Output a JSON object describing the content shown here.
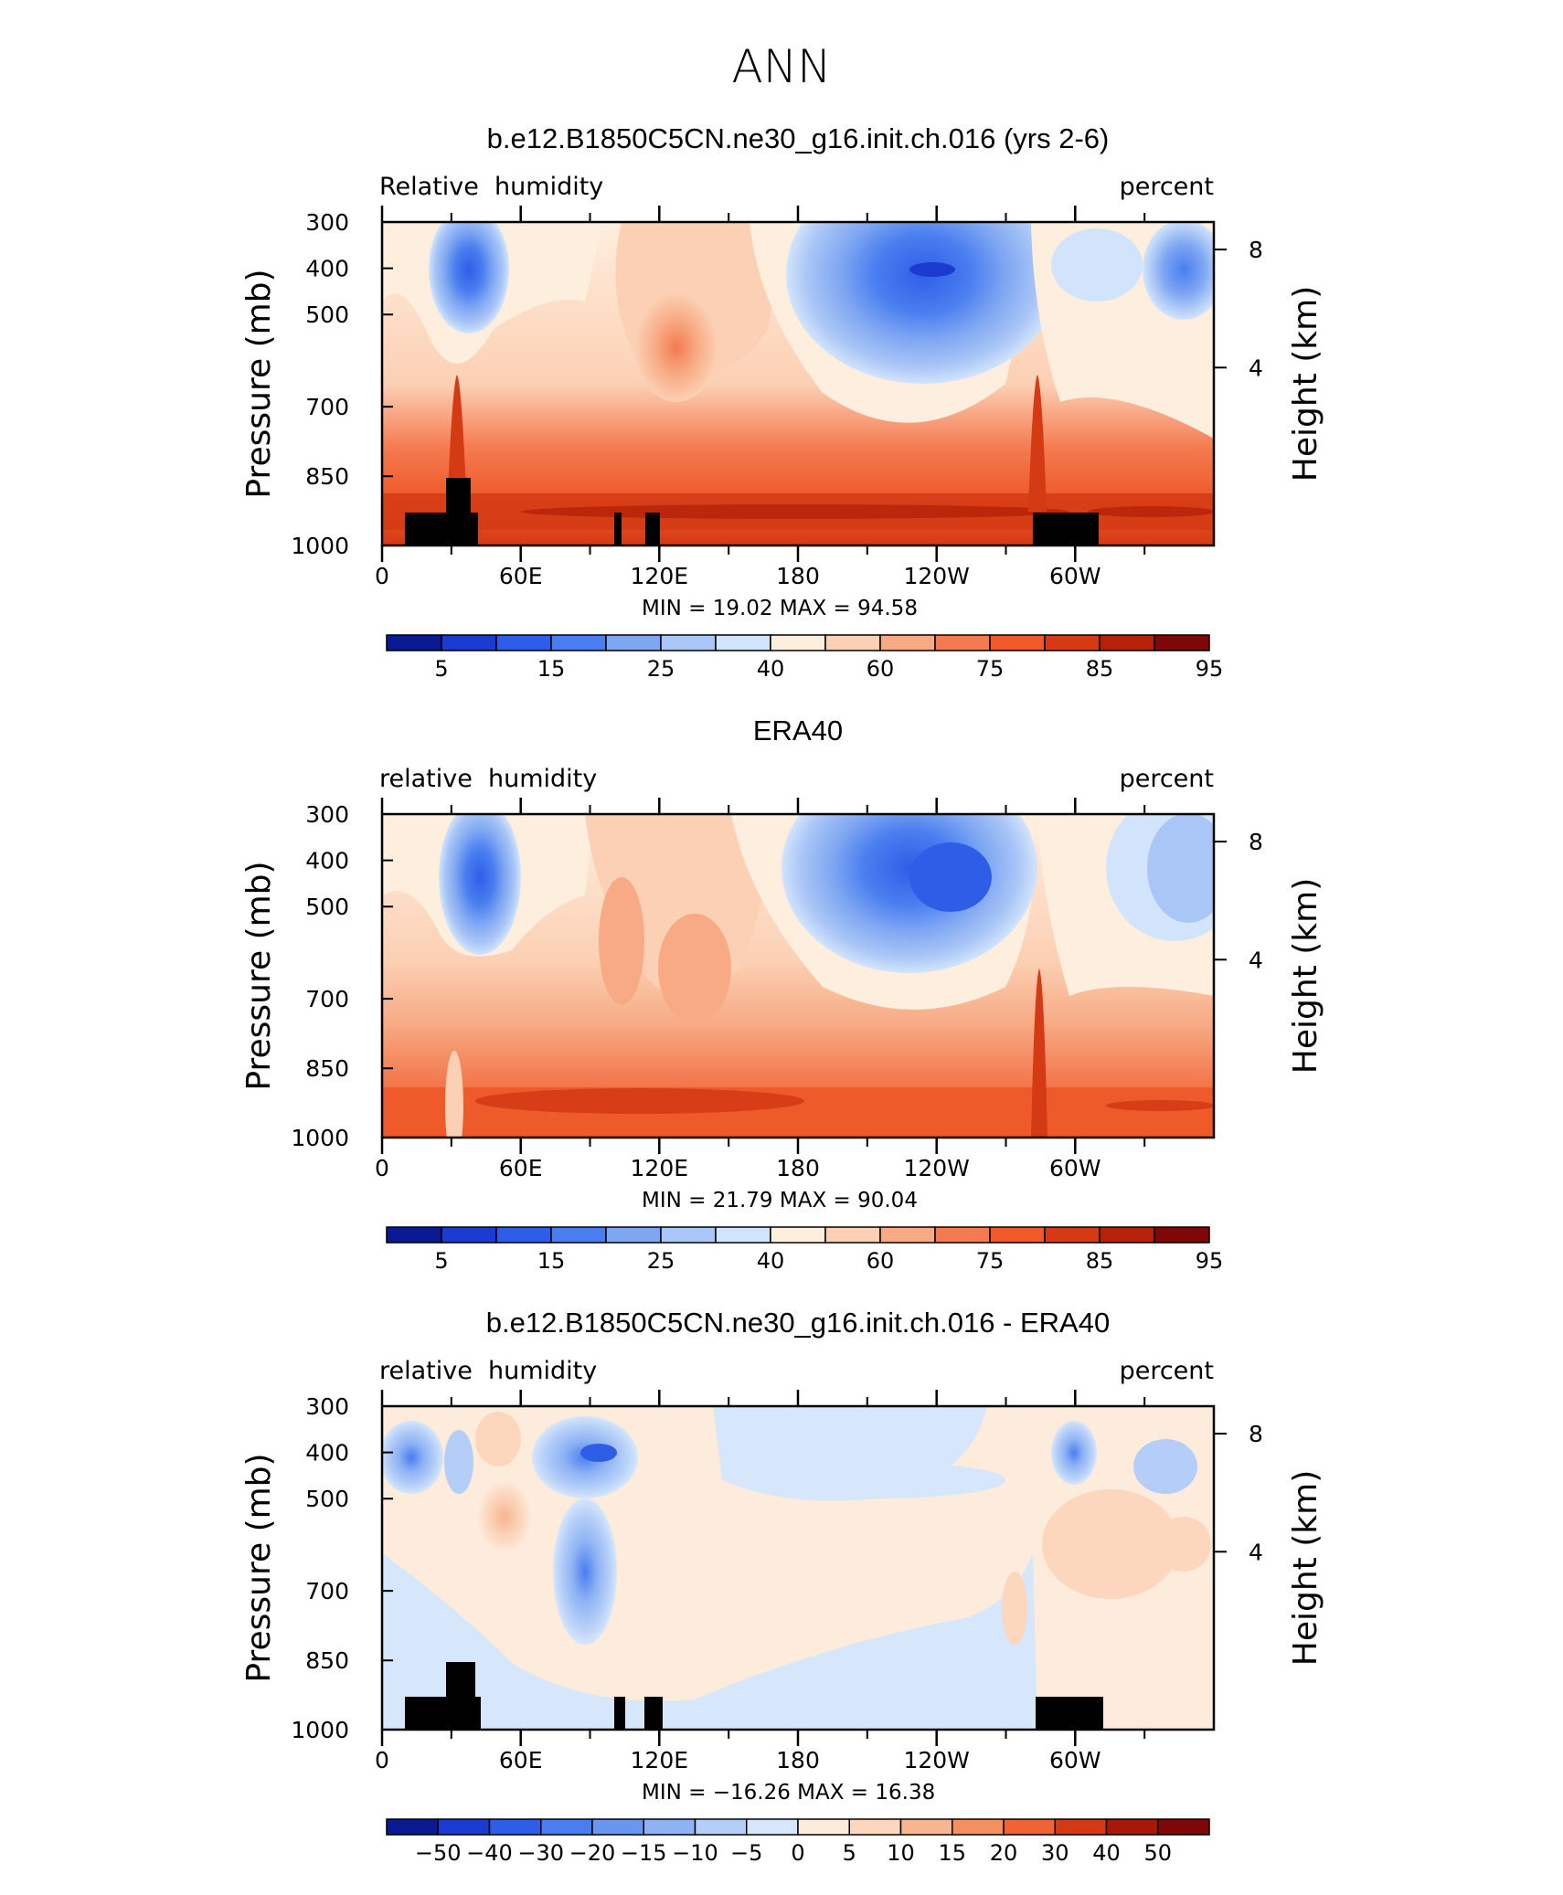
{
  "figure": {
    "title": "ANN"
  },
  "chart_data": [
    {
      "type": "heatmap",
      "title": "b.e12.B1850C5CN.ne30_g16.init.ch.016 (yrs 2-6)",
      "left_label": "Relative  humidity",
      "right_label": "percent",
      "ylabel": "Pressure  (mb)",
      "ylabel_right": "Height  (km)",
      "yticks": [
        "300",
        "400",
        "500",
        "700",
        "850",
        "1000"
      ],
      "yticks_right": [
        "8",
        "4"
      ],
      "xticks": [
        "0",
        "60E",
        "120E",
        "180",
        "120W",
        "60W"
      ],
      "stats": {
        "min_label": "MIN =",
        "min": "19.02",
        "max_label": "MAX =",
        "max": "94.58"
      },
      "colorbar_labels": [
        "5",
        "15",
        "25",
        "40",
        "60",
        "75",
        "85",
        "95"
      ],
      "colorbar_colors": [
        "#0a1a90",
        "#1a3ad0",
        "#2e5ee8",
        "#4a7ef0",
        "#7ea6f2",
        "#aac6f6",
        "#d2e4fb",
        "#feeede",
        "#fcd0b4",
        "#f7aa84",
        "#f47a50",
        "#ee5a2a",
        "#d43a14",
        "#b42208",
        "#7e0808"
      ],
      "topography": true
    },
    {
      "type": "heatmap",
      "title": "ERA40",
      "left_label": "relative  humidity",
      "right_label": "percent",
      "ylabel": "Pressure  (mb)",
      "ylabel_right": "Height  (km)",
      "yticks": [
        "300",
        "400",
        "500",
        "700",
        "850",
        "1000"
      ],
      "yticks_right": [
        "8",
        "4"
      ],
      "xticks": [
        "0",
        "60E",
        "120E",
        "180",
        "120W",
        "60W"
      ],
      "stats": {
        "min_label": "MIN =",
        "min": "21.79",
        "max_label": "MAX =",
        "max": "90.04"
      },
      "colorbar_labels": [
        "5",
        "15",
        "25",
        "40",
        "60",
        "75",
        "85",
        "95"
      ],
      "colorbar_colors": [
        "#0a1a90",
        "#1a3ad0",
        "#2e5ee8",
        "#4a7ef0",
        "#7ea6f2",
        "#aac6f6",
        "#d2e4fb",
        "#feeede",
        "#fcd0b4",
        "#f7aa84",
        "#f47a50",
        "#ee5a2a",
        "#d43a14",
        "#b42208",
        "#7e0808"
      ],
      "topography": false
    },
    {
      "type": "heatmap",
      "title": "b.e12.B1850C5CN.ne30_g16.init.ch.016 - ERA40",
      "left_label": "relative  humidity",
      "right_label": "percent",
      "ylabel": "Pressure  (mb)",
      "ylabel_right": "Height  (km)",
      "yticks": [
        "300",
        "400",
        "500",
        "700",
        "850",
        "1000"
      ],
      "yticks_right": [
        "8",
        "4"
      ],
      "xticks": [
        "0",
        "60E",
        "120E",
        "180",
        "120W",
        "60W"
      ],
      "stats": {
        "min_label": "MIN = ",
        "min": "−16.26",
        "max_label": "MAX =",
        "max": "16.38"
      },
      "colorbar_labels": [
        "−50",
        "−40",
        "−30",
        "−20",
        "−15",
        "−10",
        "−5",
        "0",
        "5",
        "10",
        "15",
        "20",
        "30",
        "40",
        "50"
      ],
      "colorbar_colors": [
        "#0a1a90",
        "#1a3ad0",
        "#2e5ee8",
        "#4a7ef0",
        "#6a96f0",
        "#8eb2f4",
        "#b4cef8",
        "#d6e6fb",
        "#fdebdc",
        "#fcd6bd",
        "#f8b592",
        "#f4905e",
        "#ee6434",
        "#d23a16",
        "#a81808",
        "#7e0808"
      ],
      "topography": true
    }
  ]
}
